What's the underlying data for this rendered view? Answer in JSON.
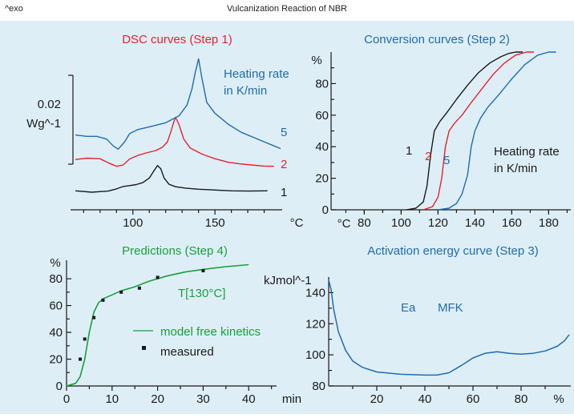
{
  "header": {
    "exo_label": "^exo",
    "title": "Vulcanization Reaction of NBR"
  },
  "colors": {
    "background": "#deeef7",
    "black": "#1a1a1a",
    "red": "#e8222a",
    "blue": "#1f6cb0",
    "green": "#17a13a"
  },
  "chart_data": [
    {
      "type": "line",
      "id": "dsc",
      "title": "DSC curves (Step 1)",
      "xlabel": "°C",
      "xlim": [
        62,
        190
      ],
      "xticks": [
        100,
        150
      ],
      "xtick_minor": 10,
      "scale_bar_label": [
        "0.02",
        "Wg^-1"
      ],
      "legend_title": [
        "Heating rate",
        "in K/min"
      ],
      "series": [
        {
          "name": "1",
          "color": "black",
          "x": [
            65,
            75,
            85,
            90,
            94,
            98,
            102,
            106,
            110,
            113,
            115,
            117,
            119,
            122,
            126,
            132,
            140,
            150,
            160,
            170,
            182
          ],
          "y": [
            0.5,
            0.0,
            0.4,
            1.2,
            2.1,
            2.4,
            2.8,
            3.5,
            5.2,
            8.0,
            9.8,
            8.6,
            5.2,
            2.9,
            2.0,
            1.5,
            1.1,
            0.8,
            0.5,
            0.4,
            0.5
          ]
        },
        {
          "name": "2",
          "color": "red",
          "x": [
            65,
            72,
            80,
            85,
            90,
            94,
            98,
            103,
            108,
            114,
            118,
            121,
            123,
            125,
            126,
            128,
            131,
            135,
            142,
            150,
            158,
            165,
            172,
            180,
            186
          ],
          "y": [
            12.0,
            12.5,
            12.3,
            10.8,
            9.5,
            10.0,
            12.2,
            13.5,
            14.4,
            15.3,
            16.5,
            18.5,
            22.0,
            26.0,
            27.5,
            25.0,
            19.5,
            16.2,
            14.0,
            12.3,
            11.0,
            10.4,
            10.0,
            9.6,
            9.5
          ]
        },
        {
          "name": "5",
          "color": "blue",
          "x": [
            65,
            72,
            78,
            84,
            88,
            91,
            95,
            98,
            103,
            110,
            120,
            128,
            133,
            136,
            138,
            140,
            142,
            145,
            150,
            158,
            166,
            174,
            180,
            186,
            190
          ],
          "y": [
            21.0,
            20.5,
            20.5,
            19.5,
            17.0,
            15.8,
            18.5,
            21.5,
            23.0,
            24.0,
            25.5,
            28.0,
            32.0,
            38.0,
            44.0,
            49.0,
            42.0,
            33.0,
            29.0,
            25.0,
            22.0,
            20.0,
            18.5,
            17.0,
            16.0
          ]
        }
      ]
    },
    {
      "type": "line",
      "id": "conversion",
      "title": "Conversion curves (Step 2)",
      "xlabel": "°C",
      "ylabel": "%",
      "xlim": [
        62,
        192
      ],
      "ylim": [
        0,
        100
      ],
      "xticks": [
        80,
        100,
        120,
        140,
        160,
        180
      ],
      "yticks": [
        0,
        20,
        40,
        60,
        80
      ],
      "legend_title": [
        "Heating rate",
        "in K/min"
      ],
      "series": [
        {
          "name": "1",
          "color": "black",
          "x": [
            103,
            108,
            112,
            114,
            116,
            118,
            121,
            125,
            130,
            136,
            142,
            148,
            154,
            158,
            162,
            166
          ],
          "y": [
            0,
            1,
            5,
            15,
            35,
            50,
            56,
            62,
            70,
            79,
            87,
            93,
            97,
            99,
            100,
            100
          ]
        },
        {
          "name": "2",
          "color": "red",
          "x": [
            112,
            117,
            120,
            122,
            124,
            126,
            129,
            133,
            138,
            144,
            150,
            156,
            162,
            168,
            172
          ],
          "y": [
            0,
            2,
            8,
            20,
            40,
            50,
            55,
            60,
            68,
            77,
            86,
            93,
            98,
            100,
            100
          ]
        },
        {
          "name": "5",
          "color": "blue",
          "x": [
            120,
            126,
            130,
            133,
            136,
            138,
            140,
            143,
            147,
            153,
            160,
            167,
            174,
            180,
            184
          ],
          "y": [
            0,
            1,
            4,
            10,
            22,
            40,
            50,
            58,
            65,
            73,
            83,
            92,
            98,
            100,
            100
          ]
        }
      ]
    },
    {
      "type": "line",
      "id": "predictions",
      "title": "Predictions (Step 4)",
      "xlabel": "min",
      "ylabel": "%",
      "xlim": [
        0,
        47
      ],
      "ylim": [
        0,
        92
      ],
      "xticks": [
        0,
        10,
        20,
        30,
        40
      ],
      "yticks": [
        0,
        20,
        40,
        60,
        80
      ],
      "annotation": "T[130°C]",
      "series": [
        {
          "name": "model free kinetics",
          "color": "green",
          "x": [
            0,
            2,
            3,
            4,
            5,
            6,
            7,
            8,
            10,
            12,
            15,
            18,
            22,
            26,
            30,
            35,
            40
          ],
          "y": [
            0,
            2,
            7,
            20,
            40,
            55,
            62,
            65,
            68,
            71,
            74,
            78,
            82,
            85,
            87,
            89,
            90.5
          ]
        },
        {
          "name": "measured",
          "color": "black",
          "marker": "square",
          "x": [
            3,
            4,
            6,
            8,
            12,
            16,
            20,
            30
          ],
          "y": [
            20,
            35,
            51,
            64,
            70,
            73,
            81,
            86
          ]
        }
      ]
    },
    {
      "type": "line",
      "id": "activation",
      "title": "Activation energy curve (Step 3)",
      "xlabel": "%",
      "ylabel": "kJmol^-1",
      "xlim": [
        0,
        100
      ],
      "ylim": [
        80,
        150
      ],
      "xticks": [
        20,
        40,
        60,
        80
      ],
      "yticks": [
        80,
        100,
        120,
        140
      ],
      "labels": [
        "Ea",
        "MFK"
      ],
      "series": [
        {
          "name": "Ea",
          "color": "blue",
          "x": [
            0,
            1,
            2,
            4,
            7,
            10,
            14,
            20,
            30,
            40,
            45,
            50,
            55,
            60,
            65,
            70,
            75,
            80,
            85,
            90,
            95,
            98,
            100
          ],
          "y": [
            148,
            142,
            130,
            115,
            103,
            96,
            92,
            89,
            87.5,
            87,
            87,
            88.5,
            93,
            98,
            101,
            102,
            101,
            100.5,
            101,
            102.5,
            105.5,
            109,
            113
          ]
        }
      ]
    }
  ]
}
